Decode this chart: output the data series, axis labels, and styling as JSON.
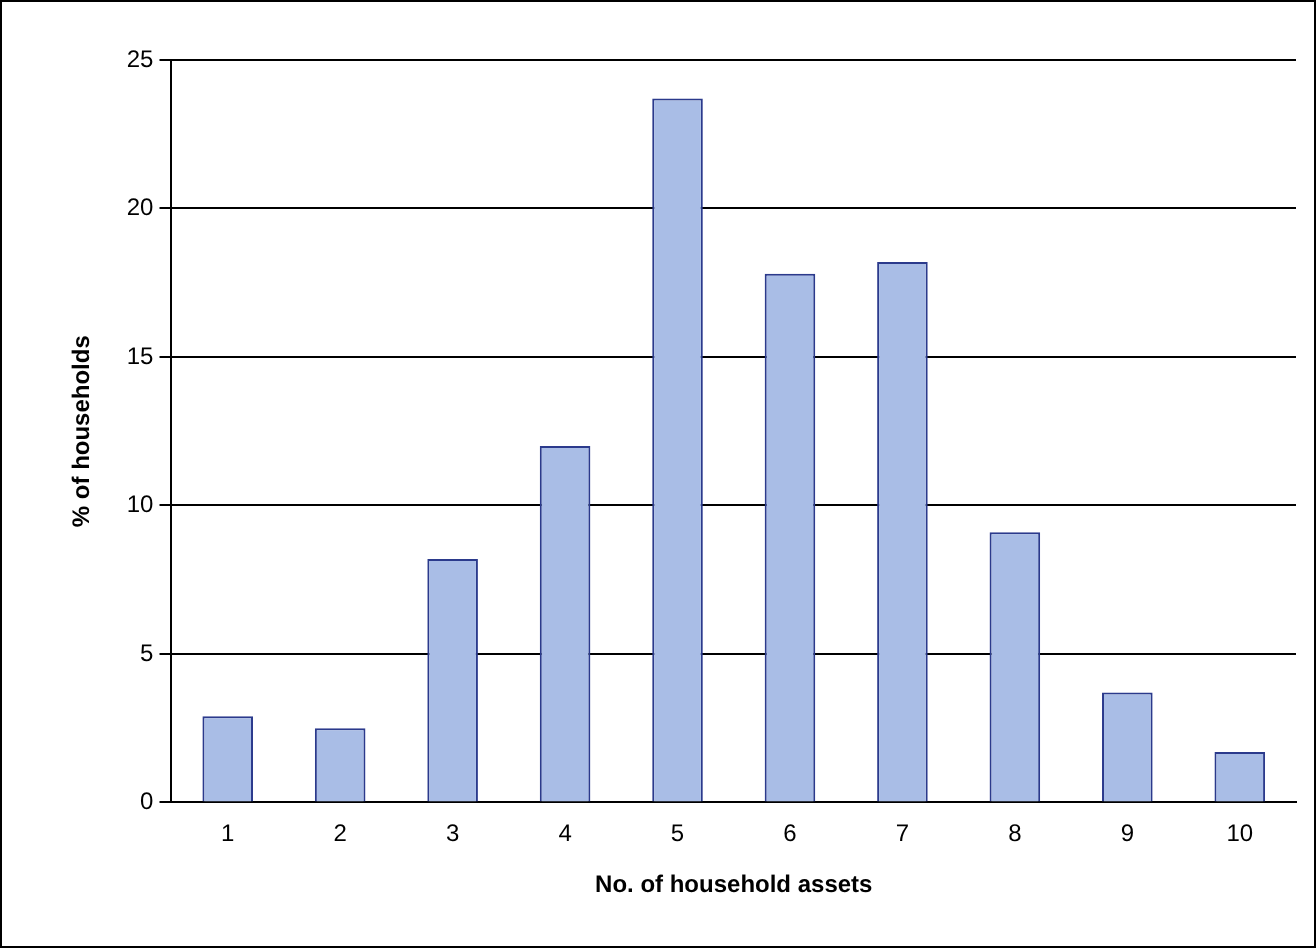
{
  "chart_data": {
    "type": "bar",
    "xlabel": "No. of household assets",
    "ylabel": "% of households",
    "categories": [
      "1",
      "2",
      "3",
      "4",
      "5",
      "6",
      "7",
      "8",
      "9",
      "10"
    ],
    "values": [
      2.9,
      2.5,
      8.2,
      12.0,
      23.7,
      17.8,
      18.2,
      9.1,
      3.7,
      1.7
    ],
    "color": "#a9bde6",
    "ylim": [
      0,
      25
    ],
    "yticks": [
      0,
      5,
      10,
      15,
      20,
      25
    ],
    "grid": "y",
    "legend": false
  }
}
